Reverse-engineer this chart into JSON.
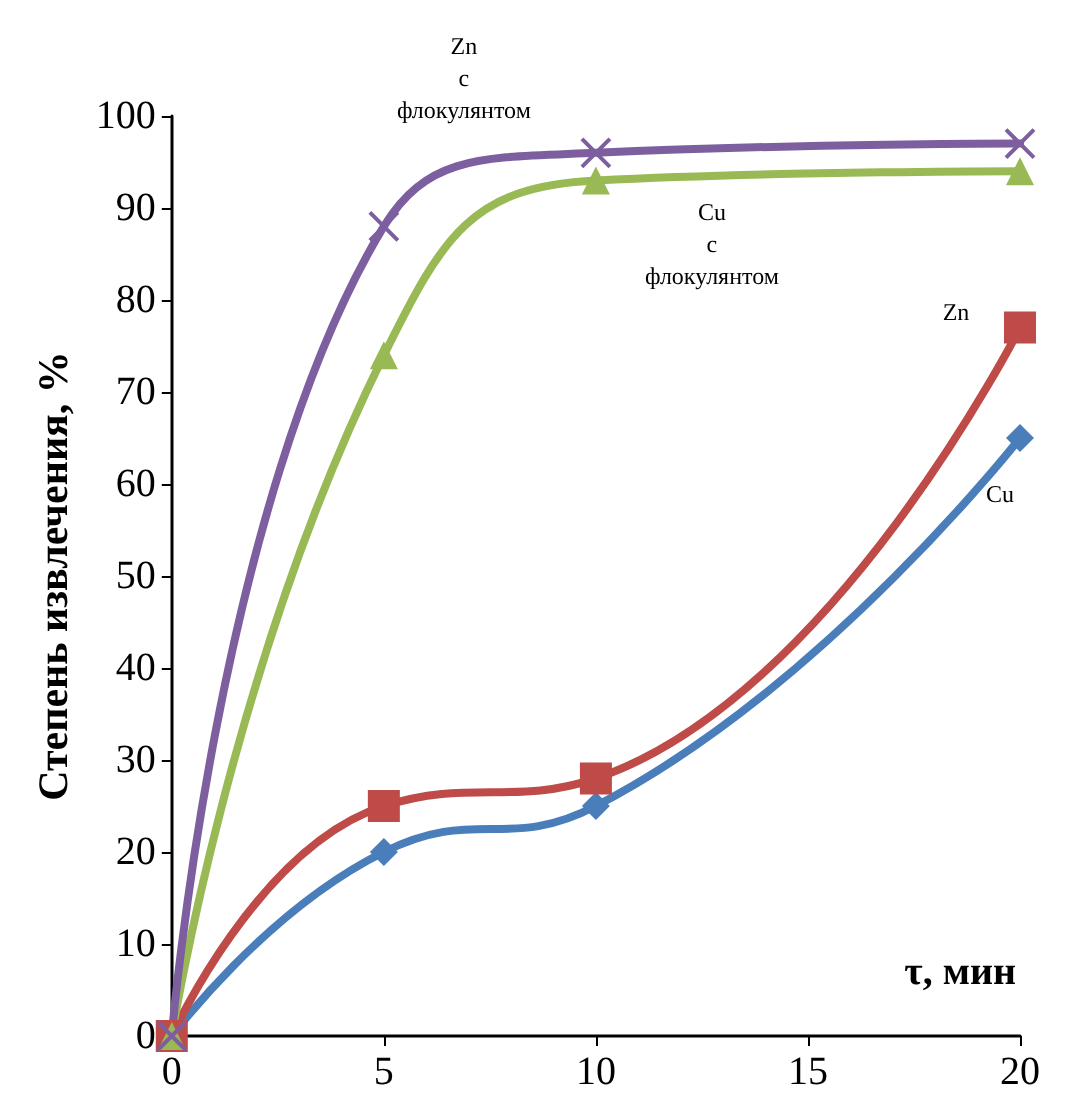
{
  "chart_data": {
    "type": "line",
    "xlabel": "τ, мин",
    "ylabel": "Степень извлечения, %",
    "x": [
      0,
      5,
      10,
      20
    ],
    "series": [
      {
        "name": "Cu",
        "color": "#4a7ebb",
        "marker": "diamond",
        "values": [
          0,
          20,
          25,
          65
        ]
      },
      {
        "name": "Zn",
        "color": "#be4b48",
        "marker": "square",
        "values": [
          0,
          25,
          28,
          77
        ]
      },
      {
        "name": "Cu с флокулянтом",
        "color": "#98b954",
        "marker": "triangle",
        "values": [
          0,
          74,
          93,
          94
        ]
      },
      {
        "name": "Zn с флокулянтом",
        "color": "#7d5fa0",
        "marker": "cross",
        "values": [
          0,
          88,
          96,
          97
        ]
      }
    ],
    "xlim": [
      0,
      20
    ],
    "xticks": [
      0,
      5,
      10,
      15,
      20
    ],
    "ylim": [
      0,
      100
    ],
    "yticks": [
      0,
      10,
      20,
      30,
      40,
      50,
      60,
      70,
      80,
      90,
      100
    ],
    "grid": false,
    "legend": false
  }
}
